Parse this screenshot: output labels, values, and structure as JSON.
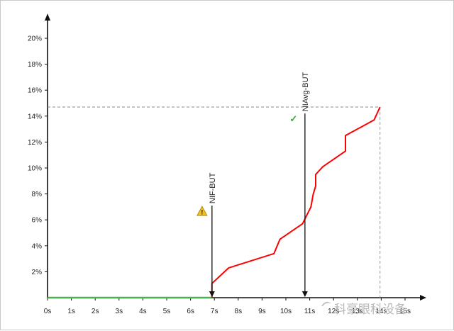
{
  "chart_data": {
    "type": "line",
    "title": "",
    "xlabel": "",
    "ylabel": "",
    "x_ticks": [
      "0s",
      "1s",
      "2s",
      "3s",
      "4s",
      "5s",
      "6s",
      "7s",
      "8s",
      "9s",
      "10s",
      "11s",
      "12s",
      "13s",
      "14s",
      "15s"
    ],
    "y_ticks": [
      "2%",
      "4%",
      "6%",
      "8%",
      "10%",
      "12%",
      "14%",
      "16%",
      "18%",
      "20%"
    ],
    "xlim": [
      0,
      16
    ],
    "ylim": [
      0,
      21
    ],
    "grid": false,
    "series": [
      {
        "color": "#4caf50",
        "x": [
          0,
          6.9
        ],
        "y": [
          0,
          0
        ]
      },
      {
        "color": "#ff0000",
        "x": [
          6.9,
          6.9,
          7.6,
          9.5,
          9.75,
          10.7,
          11.05,
          11.15,
          11.25,
          11.25,
          11.55,
          12.5,
          12.5,
          13.7,
          13.95
        ],
        "y": [
          0,
          1.1,
          2.3,
          3.4,
          4.5,
          5.7,
          7.0,
          8.0,
          8.6,
          9.5,
          10.1,
          11.3,
          12.5,
          13.7,
          14.7
        ]
      }
    ],
    "markers": [
      {
        "label": "NIF-BUT",
        "x": 6.9,
        "y_top": 7.1,
        "icon": "warning-icon",
        "icon_color": "#f2c21b"
      },
      {
        "label": "NIAvg-BUT",
        "x": 10.8,
        "y_top": 14.2,
        "icon": "checkmark-icon",
        "icon_color": "#3aa33a"
      }
    ],
    "reference": {
      "x": 13.95,
      "y": 14.7,
      "style": "dashed",
      "color": "#888888"
    },
    "markers_glyphs": {
      "warning": "!",
      "check": "✓"
    }
  },
  "watermark": {
    "text": "科豪眼科设备",
    "color": "#b8b8b8"
  }
}
